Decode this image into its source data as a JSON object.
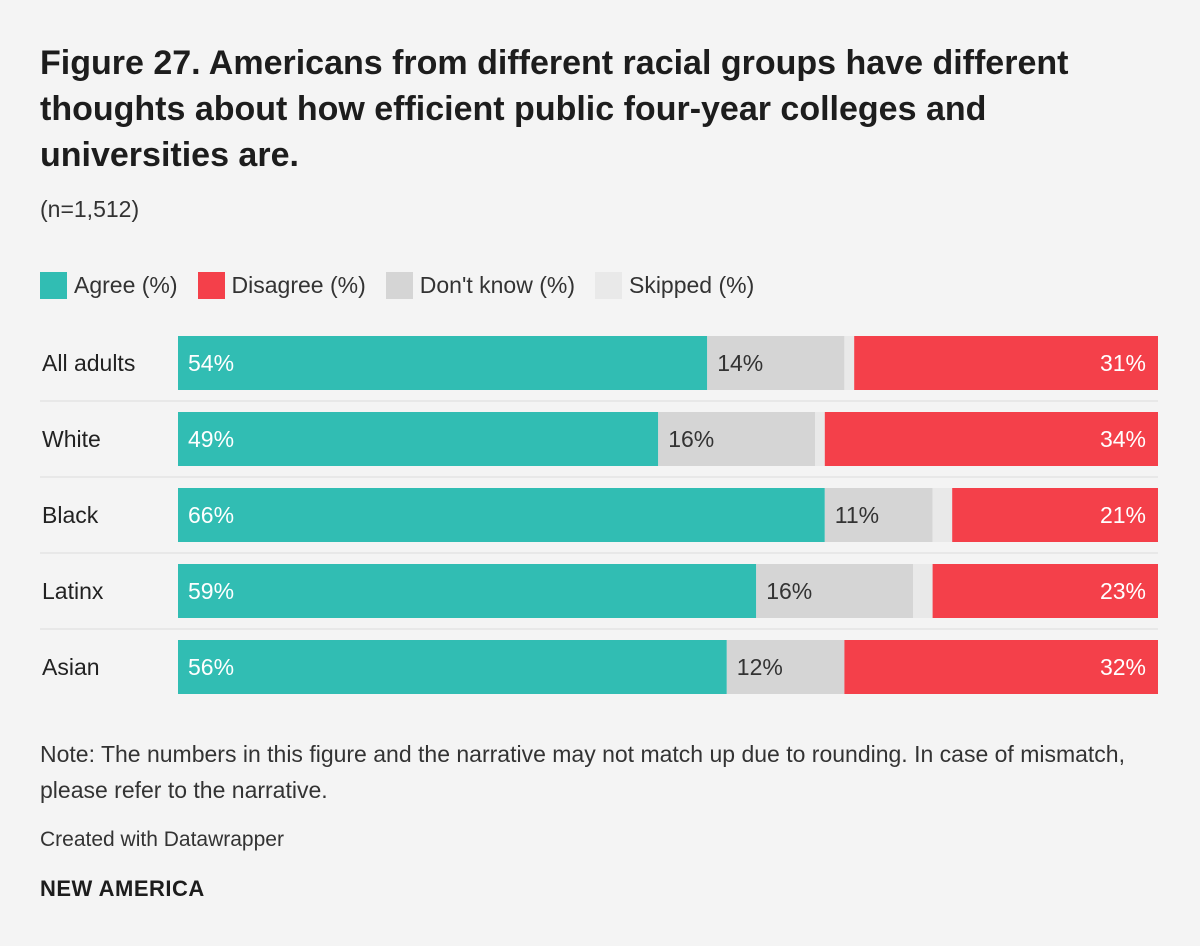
{
  "title": "Figure 27. Americans from different racial groups have different thoughts about how efficient public four-year colleges and universities are.",
  "subtitle": "(n=1,512)",
  "legend": [
    {
      "label": "Agree (%)",
      "color": "#31bdb3"
    },
    {
      "label": "Disagree (%)",
      "color": "#f4404a"
    },
    {
      "label": "Don't know (%)",
      "color": "#d5d5d5"
    },
    {
      "label": "Skipped (%)",
      "color": "#e9e9e9"
    }
  ],
  "chart_data": {
    "type": "bar",
    "orientation": "horizontal",
    "stacked": true,
    "categories": [
      "All adults",
      "White",
      "Black",
      "Latinx",
      "Asian"
    ],
    "series": [
      {
        "name": "Agree (%)",
        "values": [
          54,
          49,
          66,
          59,
          56
        ],
        "labels": [
          "54%",
          "49%",
          "66%",
          "59%",
          "56%"
        ],
        "color": "#31bdb3"
      },
      {
        "name": "Don't know (%)",
        "values": [
          14,
          16,
          11,
          16,
          12
        ],
        "labels": [
          "14%",
          "16%",
          "11%",
          "16%",
          "12%"
        ],
        "color": "#d5d5d5"
      },
      {
        "name": "Skipped (%)",
        "values": [
          1,
          1,
          2,
          2,
          0
        ],
        "labels": [
          "",
          "",
          "",
          "",
          ""
        ],
        "color": "#e9e9e9"
      },
      {
        "name": "Disagree (%)",
        "values": [
          31,
          34,
          21,
          23,
          32
        ],
        "labels": [
          "31%",
          "34%",
          "21%",
          "23%",
          "32%"
        ],
        "color": "#f4404a"
      }
    ],
    "xlim": [
      0,
      100
    ]
  },
  "note": "Note: The numbers in this figure and the narrative may not match up due to rounding. In case of mismatch, please refer to the narrative.",
  "credit": "Created with Datawrapper",
  "brand": "NEW AMERICA"
}
